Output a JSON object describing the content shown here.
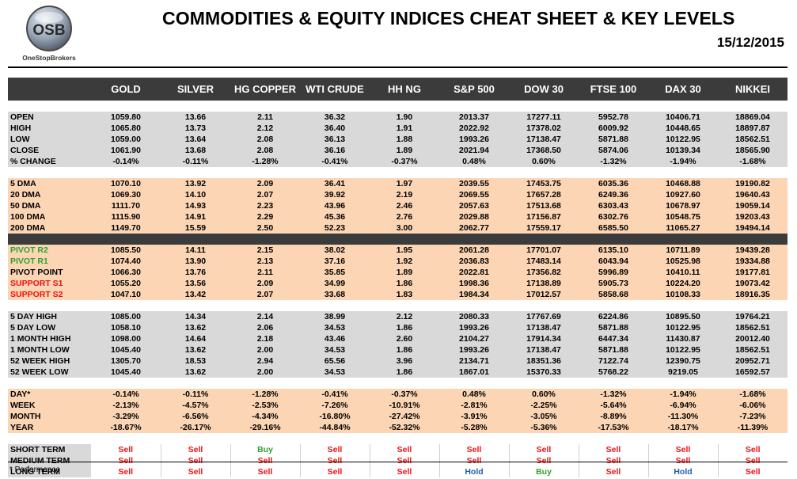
{
  "header": {
    "title": "COMMODITIES & EQUITY INDICES CHEAT SHEET & KEY LEVELS",
    "date": "15/12/2015",
    "logo_mark": "OSB",
    "logo_caption": "OneStopBrokers"
  },
  "columns": [
    "GOLD",
    "SILVER",
    "HG COPPER",
    "WTI CRUDE",
    "HH NG",
    "S&P 500",
    "DOW 30",
    "FTSE 100",
    "DAX 30",
    "NIKKEI"
  ],
  "groups": [
    {
      "style": "gray",
      "rows": [
        {
          "label": "OPEN",
          "values": [
            "1059.80",
            "13.66",
            "2.11",
            "36.32",
            "1.90",
            "2013.37",
            "17277.11",
            "5952.78",
            "10406.71",
            "18869.04"
          ]
        },
        {
          "label": "HIGH",
          "values": [
            "1065.80",
            "13.73",
            "2.12",
            "36.40",
            "1.91",
            "2022.92",
            "17378.02",
            "6009.92",
            "10448.65",
            "18897.87"
          ]
        },
        {
          "label": "LOW",
          "values": [
            "1059.00",
            "13.64",
            "2.08",
            "36.13",
            "1.88",
            "1993.26",
            "17138.47",
            "5871.88",
            "10122.95",
            "18562.51"
          ]
        },
        {
          "label": "CLOSE",
          "values": [
            "1061.90",
            "13.68",
            "2.08",
            "36.16",
            "1.89",
            "2021.94",
            "17368.50",
            "5874.06",
            "10139.34",
            "18565.90"
          ]
        },
        {
          "label": "% CHANGE",
          "values": [
            "-0.14%",
            "-0.11%",
            "-1.28%",
            "-0.41%",
            "-0.37%",
            "0.48%",
            "0.60%",
            "-1.32%",
            "-1.94%",
            "-1.68%"
          ]
        }
      ]
    },
    {
      "style": "peach",
      "rows": [
        {
          "label": "5 DMA",
          "values": [
            "1070.10",
            "13.92",
            "2.09",
            "36.41",
            "1.97",
            "2039.55",
            "17453.75",
            "6035.36",
            "10468.88",
            "19190.82"
          ]
        },
        {
          "label": "20 DMA",
          "values": [
            "1069.30",
            "14.10",
            "2.07",
            "39.92",
            "2.19",
            "2069.55",
            "17657.28",
            "6249.36",
            "10927.60",
            "19640.43"
          ]
        },
        {
          "label": "50 DMA",
          "values": [
            "1111.70",
            "14.93",
            "2.23",
            "43.96",
            "2.46",
            "2057.63",
            "17513.68",
            "6303.43",
            "10678.97",
            "19059.14"
          ]
        },
        {
          "label": "100 DMA",
          "values": [
            "1115.90",
            "14.91",
            "2.29",
            "45.36",
            "2.76",
            "2029.88",
            "17156.87",
            "6302.76",
            "10548.75",
            "19203.43"
          ]
        },
        {
          "label": "200 DMA",
          "values": [
            "1149.70",
            "15.59",
            "2.50",
            "52.23",
            "3.00",
            "2062.77",
            "17559.17",
            "6585.50",
            "11065.27",
            "19494.14"
          ]
        }
      ]
    },
    {
      "style": "peach",
      "rows": [
        {
          "label": "PIVOT R2",
          "label_color": "green",
          "values": [
            "1085.50",
            "14.11",
            "2.15",
            "38.02",
            "1.95",
            "2061.28",
            "17701.07",
            "6135.10",
            "10711.89",
            "19439.28"
          ]
        },
        {
          "label": "PIVOT R1",
          "label_color": "green",
          "values": [
            "1074.40",
            "13.90",
            "2.13",
            "37.16",
            "1.92",
            "2036.83",
            "17483.14",
            "6043.94",
            "10525.98",
            "19334.88"
          ]
        },
        {
          "label": "PIVOT POINT",
          "values": [
            "1066.30",
            "13.76",
            "2.11",
            "35.85",
            "1.89",
            "2022.81",
            "17356.82",
            "5996.89",
            "10410.11",
            "19177.81"
          ]
        },
        {
          "label": "SUPPORT S1",
          "label_color": "red",
          "values": [
            "1055.20",
            "13.56",
            "2.09",
            "34.99",
            "1.86",
            "1998.36",
            "17138.89",
            "5905.73",
            "10224.20",
            "19073.42"
          ]
        },
        {
          "label": "SUPPORT S2",
          "label_color": "red",
          "values": [
            "1047.10",
            "13.42",
            "2.07",
            "33.68",
            "1.83",
            "1984.34",
            "17012.57",
            "5858.68",
            "10108.33",
            "18916.35"
          ]
        }
      ]
    },
    {
      "style": "gray",
      "rows": [
        {
          "label": "5 DAY HIGH",
          "values": [
            "1085.00",
            "14.34",
            "2.14",
            "38.99",
            "2.12",
            "2080.33",
            "17767.69",
            "6224.86",
            "10895.50",
            "19764.21"
          ]
        },
        {
          "label": "5 DAY LOW",
          "values": [
            "1058.10",
            "13.62",
            "2.06",
            "34.53",
            "1.86",
            "1993.26",
            "17138.47",
            "5871.88",
            "10122.95",
            "18562.51"
          ]
        },
        {
          "label": "1 MONTH HIGH",
          "values": [
            "1098.00",
            "14.64",
            "2.18",
            "43.46",
            "2.60",
            "2104.27",
            "17914.34",
            "6447.34",
            "11430.87",
            "20012.40"
          ]
        },
        {
          "label": "1 MONTH LOW",
          "values": [
            "1045.40",
            "13.62",
            "2.00",
            "34.53",
            "1.86",
            "1993.26",
            "17138.47",
            "5871.88",
            "10122.95",
            "18562.51"
          ]
        },
        {
          "label": "52 WEEK HIGH",
          "values": [
            "1305.70",
            "18.53",
            "2.94",
            "65.56",
            "3.96",
            "2134.71",
            "18351.36",
            "7122.74",
            "12390.75",
            "20952.71"
          ]
        },
        {
          "label": "52 WEEK LOW",
          "values": [
            "1045.40",
            "13.62",
            "2.00",
            "34.53",
            "1.86",
            "1867.01",
            "15370.33",
            "5768.22",
            "9219.05",
            "16592.57"
          ]
        }
      ]
    },
    {
      "style": "peach",
      "rows": [
        {
          "label": "DAY*",
          "values": [
            "-0.14%",
            "-0.11%",
            "-1.28%",
            "-0.41%",
            "-0.37%",
            "0.48%",
            "0.60%",
            "-1.32%",
            "-1.94%",
            "-1.68%"
          ]
        },
        {
          "label": "WEEK",
          "values": [
            "-2.13%",
            "-4.57%",
            "-2.53%",
            "-7.26%",
            "-10.91%",
            "-2.81%",
            "-2.25%",
            "-5.64%",
            "-6.94%",
            "-6.06%"
          ]
        },
        {
          "label": "MONTH",
          "values": [
            "-3.29%",
            "-6.56%",
            "-4.34%",
            "-16.80%",
            "-27.42%",
            "-3.91%",
            "-3.05%",
            "-8.89%",
            "-11.30%",
            "-7.23%"
          ]
        },
        {
          "label": "YEAR",
          "values": [
            "-18.67%",
            "-26.17%",
            "-29.16%",
            "-44.84%",
            "-52.32%",
            "-5.28%",
            "-5.36%",
            "-17.53%",
            "-18.17%",
            "-11.39%"
          ]
        }
      ]
    }
  ],
  "signals": {
    "colors": {
      "Sell": "#ee1111",
      "Buy": "#2ea12e",
      "Hold": "#1f5fa8"
    },
    "rows": [
      {
        "label": "SHORT TERM",
        "values": [
          "Sell",
          "Sell",
          "Buy",
          "Sell",
          "Sell",
          "Sell",
          "Sell",
          "Sell",
          "Sell",
          "Sell"
        ]
      },
      {
        "label": "MEDIUM TERM",
        "values": [
          "Sell",
          "Sell",
          "Sell",
          "Sell",
          "Sell",
          "Sell",
          "Sell",
          "Sell",
          "Sell",
          "Sell"
        ]
      },
      {
        "label": "LONG TERM",
        "values": [
          "Sell",
          "Sell",
          "Sell",
          "Sell",
          "Sell",
          "Hold",
          "Buy",
          "Sell",
          "Hold",
          "Sell"
        ]
      }
    ]
  },
  "footnote": "* Performance"
}
